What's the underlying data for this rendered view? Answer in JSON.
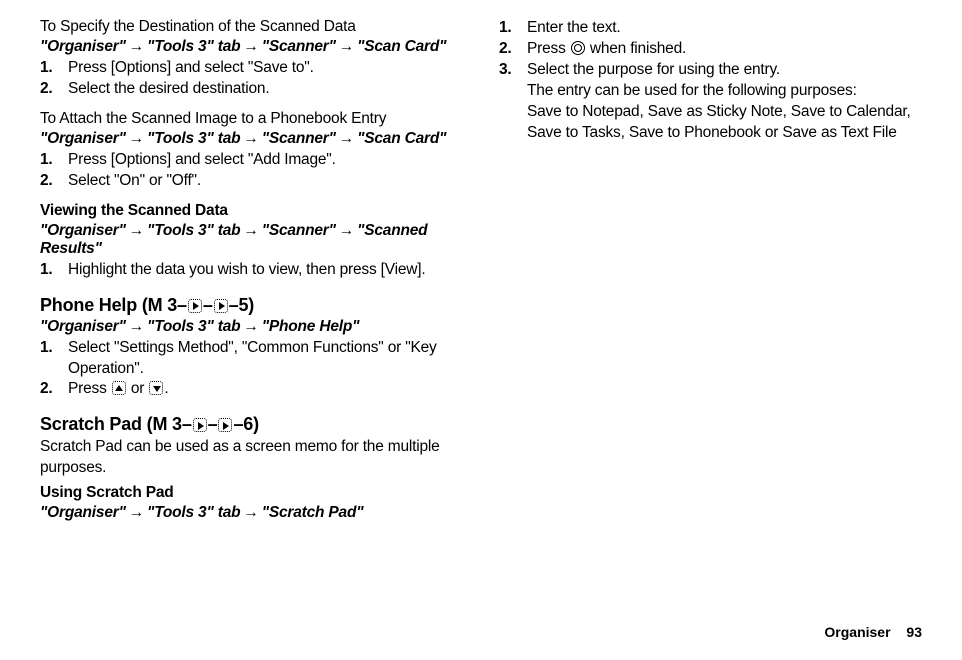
{
  "col1": {
    "block1": {
      "subhead": "To Specify the Destination of the Scanned Data",
      "path_parts": [
        "\"Organiser\"",
        "\"Tools 3\" tab",
        "\"Scanner\"",
        "\"Scan Card\""
      ],
      "steps": [
        {
          "n": "1.",
          "t": "Press [Options] and select \"Save to\"."
        },
        {
          "n": "2.",
          "t": "Select the desired destination."
        }
      ]
    },
    "block2": {
      "subhead": "To Attach the Scanned Image to a Phonebook Entry",
      "path_parts": [
        "\"Organiser\"",
        "\"Tools 3\" tab",
        "\"Scanner\"",
        "\"Scan Card\""
      ],
      "steps": [
        {
          "n": "1.",
          "t": "Press [Options] and select \"Add Image\"."
        },
        {
          "n": "2.",
          "t": "Select \"On\" or \"Off\"."
        }
      ]
    },
    "block3": {
      "heading": "Viewing the Scanned Data",
      "path_parts": [
        "\"Organiser\"",
        "\"Tools 3\" tab",
        "\"Scanner\"",
        "\"Scanned Results\""
      ],
      "steps": [
        {
          "n": "1.",
          "t": "Highlight the data you wish to view, then press [View]."
        }
      ]
    },
    "block4": {
      "major": "Phone Help",
      "nav_prefix": " (M 3–",
      "nav_suffix": "–5)",
      "path_parts": [
        "\"Organiser\"",
        "\"Tools 3\" tab",
        "\"Phone Help\""
      ],
      "steps": [
        {
          "n": "1.",
          "t": "Select \"Settings Method\", \"Common Functions\" or \"Key Operation\"."
        },
        {
          "n": "2.",
          "t_pre": "Press ",
          "t_mid": " or ",
          "t_post": "."
        }
      ]
    },
    "block5": {
      "major": "Scratch Pad",
      "nav_prefix": " (M 3–",
      "nav_suffix": "–6)",
      "desc": "Scratch Pad can be used as a screen memo for the multiple purposes.",
      "heading": "Using Scratch Pad",
      "path_parts": [
        "\"Organiser\"",
        "\"Tools 3\" tab",
        "\"Scratch Pad\""
      ]
    }
  },
  "col2": {
    "steps": [
      {
        "n": "1.",
        "t": "Enter the text."
      },
      {
        "n": "2.",
        "t_pre": "Press ",
        "t_post": " when finished."
      },
      {
        "n": "3.",
        "t": "Select the purpose for using the entry.",
        "sub1": "The entry can be used for the following purposes:",
        "sub2": "Save to Notepad, Save as Sticky Note, Save to Calendar, Save to Tasks, Save to Phonebook or Save as Text File"
      }
    ]
  },
  "footer": {
    "label": "Organiser",
    "page": "93"
  }
}
